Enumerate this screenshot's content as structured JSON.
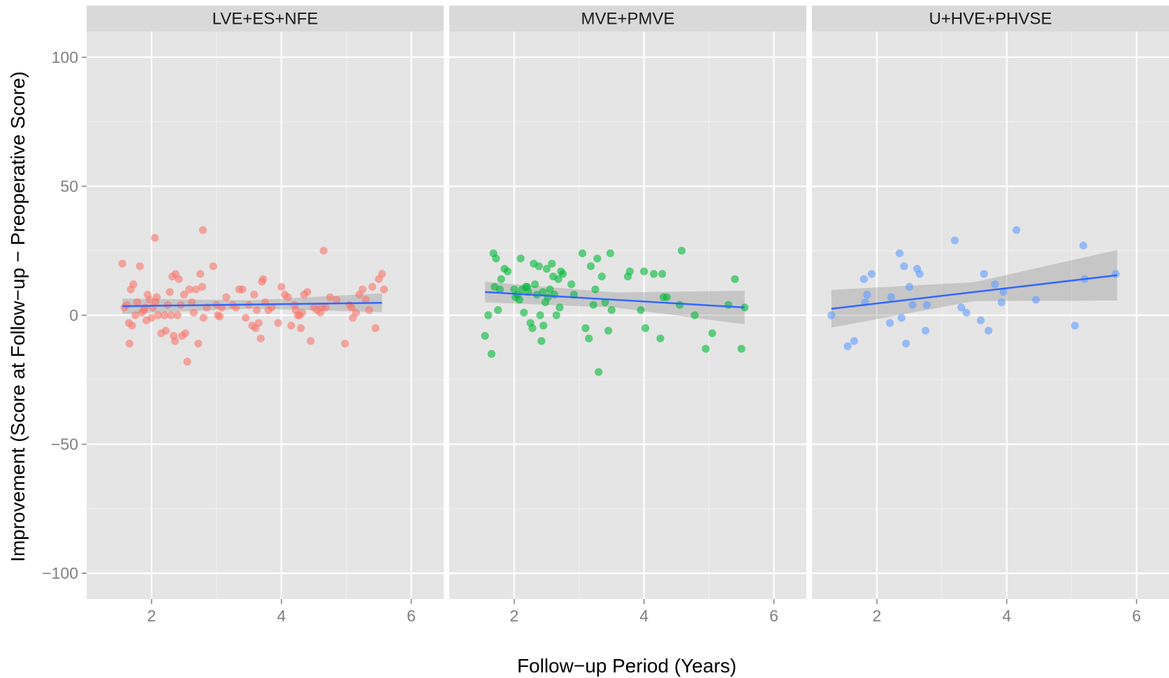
{
  "chart_data": {
    "type": "scatter",
    "xlabel": "Follow−up Period (Years)",
    "ylabel": "Improvement (Score at Follow−up − Preoperative Score)",
    "xlim": [
      1.0,
      6.5
    ],
    "ylim": [
      -110,
      110
    ],
    "x_ticks": [
      2,
      4,
      6
    ],
    "y_ticks": [
      100,
      50,
      0,
      -50,
      -100
    ],
    "x_tick_labels": [
      "2",
      "4",
      "6"
    ],
    "y_tick_labels": [
      "100",
      "50",
      "0",
      "−50",
      "−100"
    ],
    "grid": true,
    "legend": "none",
    "fit_color": "#3366ff",
    "band_color": "#999999",
    "panels": [
      {
        "title": "LVE+ES+NFE",
        "color": "#f8766d",
        "fit": {
          "x": [
            1.55,
            5.55
          ],
          "y": [
            3.5,
            4.8
          ]
        },
        "band": {
          "x": [
            1.55,
            3.55,
            5.55
          ],
          "upper": [
            6.5,
            5.8,
            8.5
          ],
          "lower": [
            0.5,
            2.6,
            1.2
          ]
        },
        "points": [
          [
            1.55,
            20
          ],
          [
            1.58,
            3
          ],
          [
            1.62,
            4
          ],
          [
            1.65,
            -3
          ],
          [
            1.66,
            -11
          ],
          [
            1.68,
            10
          ],
          [
            1.7,
            -4
          ],
          [
            1.72,
            12
          ],
          [
            1.75,
            0
          ],
          [
            1.78,
            5
          ],
          [
            1.82,
            19
          ],
          [
            1.85,
            1
          ],
          [
            1.88,
            2
          ],
          [
            1.9,
            3
          ],
          [
            1.92,
            -2
          ],
          [
            1.94,
            8
          ],
          [
            1.97,
            6
          ],
          [
            2.0,
            -1
          ],
          [
            2.02,
            3
          ],
          [
            2.05,
            30
          ],
          [
            2.06,
            5
          ],
          [
            2.08,
            7
          ],
          [
            2.1,
            0
          ],
          [
            2.15,
            -7
          ],
          [
            2.2,
            0
          ],
          [
            2.22,
            -6
          ],
          [
            2.25,
            4
          ],
          [
            2.28,
            9
          ],
          [
            2.3,
            0
          ],
          [
            2.32,
            15
          ],
          [
            2.34,
            -8
          ],
          [
            2.36,
            -10
          ],
          [
            2.37,
            16
          ],
          [
            2.4,
            0
          ],
          [
            2.42,
            14
          ],
          [
            2.45,
            4
          ],
          [
            2.47,
            -8
          ],
          [
            2.5,
            8
          ],
          [
            2.52,
            -7
          ],
          [
            2.55,
            -18
          ],
          [
            2.58,
            10
          ],
          [
            2.62,
            5
          ],
          [
            2.65,
            1
          ],
          [
            2.68,
            10
          ],
          [
            2.72,
            -11
          ],
          [
            2.75,
            16
          ],
          [
            2.78,
            11
          ],
          [
            2.79,
            33
          ],
          [
            2.8,
            -1
          ],
          [
            2.85,
            3
          ],
          [
            2.95,
            19
          ],
          [
            3.0,
            4
          ],
          [
            3.02,
            0
          ],
          [
            3.05,
            -0.5
          ],
          [
            3.08,
            3
          ],
          [
            3.15,
            7
          ],
          [
            3.25,
            4
          ],
          [
            3.3,
            3
          ],
          [
            3.35,
            10
          ],
          [
            3.4,
            10
          ],
          [
            3.45,
            -1
          ],
          [
            3.5,
            4
          ],
          [
            3.55,
            -4
          ],
          [
            3.58,
            8
          ],
          [
            3.6,
            -5
          ],
          [
            3.62,
            2
          ],
          [
            3.65,
            -3
          ],
          [
            3.68,
            -9
          ],
          [
            3.7,
            13
          ],
          [
            3.72,
            14
          ],
          [
            3.75,
            5
          ],
          [
            3.8,
            2
          ],
          [
            3.85,
            3
          ],
          [
            3.95,
            -3
          ],
          [
            4.0,
            11
          ],
          [
            4.05,
            8
          ],
          [
            4.1,
            7
          ],
          [
            4.15,
            -4
          ],
          [
            4.2,
            4
          ],
          [
            4.22,
            2
          ],
          [
            4.25,
            0
          ],
          [
            4.28,
            0
          ],
          [
            4.3,
            -5
          ],
          [
            4.32,
            1
          ],
          [
            4.35,
            8
          ],
          [
            4.4,
            9
          ],
          [
            4.45,
            -10
          ],
          [
            4.5,
            3
          ],
          [
            4.55,
            2
          ],
          [
            4.6,
            1
          ],
          [
            4.62,
            3
          ],
          [
            4.65,
            25
          ],
          [
            4.68,
            3
          ],
          [
            4.75,
            7
          ],
          [
            4.85,
            6
          ],
          [
            4.98,
            -11
          ],
          [
            5.05,
            4
          ],
          [
            5.08,
            3
          ],
          [
            5.1,
            -1
          ],
          [
            5.15,
            1
          ],
          [
            5.2,
            8
          ],
          [
            5.25,
            10
          ],
          [
            5.3,
            6
          ],
          [
            5.35,
            2
          ],
          [
            5.4,
            11
          ],
          [
            5.45,
            -5
          ],
          [
            5.5,
            14
          ],
          [
            5.55,
            16
          ],
          [
            5.58,
            10
          ]
        ]
      },
      {
        "title": "MVE+PMVE",
        "color": "#00ba38",
        "fit": {
          "x": [
            1.55,
            5.55
          ],
          "y": [
            9.0,
            3.0
          ]
        },
        "band": {
          "x": [
            1.55,
            3.55,
            5.55
          ],
          "upper": [
            13.0,
            8.8,
            9.5
          ],
          "lower": [
            5.0,
            3.0,
            -3.5
          ]
        },
        "points": [
          [
            1.55,
            -8
          ],
          [
            1.6,
            0
          ],
          [
            1.65,
            -15
          ],
          [
            1.68,
            24
          ],
          [
            1.7,
            11
          ],
          [
            1.72,
            22
          ],
          [
            1.75,
            2
          ],
          [
            1.78,
            10
          ],
          [
            1.8,
            14
          ],
          [
            1.85,
            18
          ],
          [
            1.9,
            17
          ],
          [
            2.0,
            10
          ],
          [
            2.02,
            7
          ],
          [
            2.05,
            8
          ],
          [
            2.08,
            6
          ],
          [
            2.1,
            22
          ],
          [
            2.12,
            10
          ],
          [
            2.15,
            1
          ],
          [
            2.18,
            11
          ],
          [
            2.2,
            11
          ],
          [
            2.22,
            9
          ],
          [
            2.25,
            -3
          ],
          [
            2.28,
            -5
          ],
          [
            2.3,
            20
          ],
          [
            2.32,
            12
          ],
          [
            2.35,
            8
          ],
          [
            2.38,
            19
          ],
          [
            2.4,
            0
          ],
          [
            2.42,
            -10
          ],
          [
            2.44,
            9
          ],
          [
            2.45,
            -4
          ],
          [
            2.48,
            5
          ],
          [
            2.5,
            18
          ],
          [
            2.52,
            7
          ],
          [
            2.55,
            10
          ],
          [
            2.58,
            20
          ],
          [
            2.6,
            15
          ],
          [
            2.62,
            8
          ],
          [
            2.65,
            0
          ],
          [
            2.68,
            14
          ],
          [
            2.7,
            3
          ],
          [
            2.72,
            17
          ],
          [
            2.75,
            16
          ],
          [
            2.88,
            12
          ],
          [
            2.92,
            8
          ],
          [
            3.05,
            24
          ],
          [
            3.1,
            -5
          ],
          [
            3.15,
            -9
          ],
          [
            3.18,
            19
          ],
          [
            3.22,
            4
          ],
          [
            3.25,
            10
          ],
          [
            3.28,
            22
          ],
          [
            3.3,
            -22
          ],
          [
            3.35,
            15
          ],
          [
            3.4,
            5
          ],
          [
            3.45,
            -6
          ],
          [
            3.48,
            24
          ],
          [
            3.5,
            2
          ],
          [
            3.75,
            15
          ],
          [
            3.78,
            17
          ],
          [
            3.95,
            2
          ],
          [
            4.0,
            17
          ],
          [
            4.02,
            -5
          ],
          [
            4.15,
            16
          ],
          [
            4.25,
            -9
          ],
          [
            4.28,
            16
          ],
          [
            4.3,
            7
          ],
          [
            4.35,
            7
          ],
          [
            4.55,
            4
          ],
          [
            4.58,
            25
          ],
          [
            4.78,
            0
          ],
          [
            4.95,
            -13
          ],
          [
            5.05,
            -7
          ],
          [
            5.3,
            4
          ],
          [
            5.4,
            14
          ],
          [
            5.5,
            -13
          ],
          [
            5.55,
            3
          ]
        ]
      },
      {
        "title": "U+HVE+PHVSE",
        "color": "#619cff",
        "fit": {
          "x": [
            1.3,
            5.7
          ],
          "y": [
            2.5,
            15.5
          ]
        },
        "band": {
          "x": [
            1.3,
            3.5,
            5.7
          ],
          "upper": [
            9.8,
            12.8,
            25.3
          ],
          "lower": [
            -4.8,
            5.5,
            5.7
          ]
        },
        "points": [
          [
            1.3,
            0
          ],
          [
            1.55,
            -12
          ],
          [
            1.65,
            -10
          ],
          [
            1.8,
            14
          ],
          [
            1.82,
            5
          ],
          [
            1.85,
            8
          ],
          [
            1.92,
            16
          ],
          [
            2.2,
            -3
          ],
          [
            2.22,
            7
          ],
          [
            2.35,
            24
          ],
          [
            2.38,
            -1
          ],
          [
            2.42,
            19
          ],
          [
            2.45,
            -11
          ],
          [
            2.5,
            11
          ],
          [
            2.55,
            4
          ],
          [
            2.62,
            18
          ],
          [
            2.66,
            16
          ],
          [
            2.75,
            -6
          ],
          [
            2.77,
            4
          ],
          [
            3.2,
            29
          ],
          [
            3.3,
            3
          ],
          [
            3.38,
            1
          ],
          [
            3.6,
            -2
          ],
          [
            3.65,
            16
          ],
          [
            3.72,
            -6
          ],
          [
            3.82,
            12
          ],
          [
            3.92,
            5
          ],
          [
            3.95,
            9
          ],
          [
            4.15,
            33
          ],
          [
            4.45,
            6
          ],
          [
            5.05,
            -4
          ],
          [
            5.18,
            27
          ],
          [
            5.2,
            14
          ],
          [
            5.68,
            16
          ]
        ]
      }
    ]
  }
}
